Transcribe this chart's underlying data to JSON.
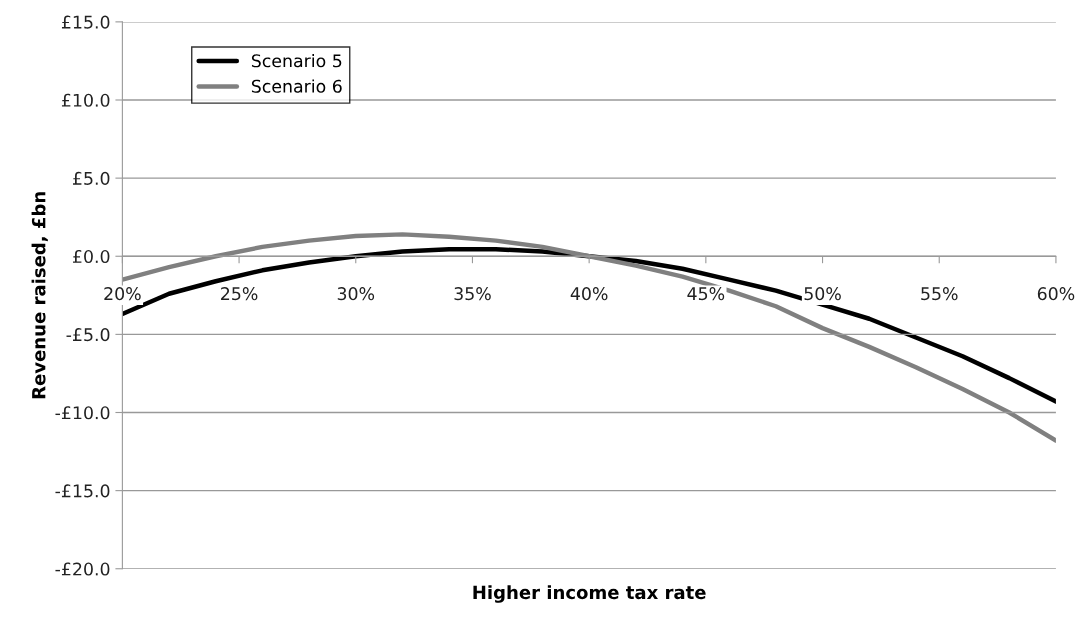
{
  "chart_data": {
    "type": "line",
    "xlabel": "Higher income tax rate",
    "ylabel": "Revenue raised, £bn",
    "x": [
      20,
      22,
      24,
      26,
      28,
      30,
      32,
      34,
      36,
      38,
      40,
      42,
      44,
      46,
      48,
      50,
      52,
      54,
      56,
      58,
      60
    ],
    "series": [
      {
        "name": "Scenario 5",
        "color": "#000000",
        "values": [
          -3.7,
          -2.4,
          -1.6,
          -0.9,
          -0.4,
          0.0,
          0.3,
          0.45,
          0.45,
          0.3,
          0.0,
          -0.3,
          -0.8,
          -1.5,
          -2.2,
          -3.1,
          -4.0,
          -5.2,
          -6.4,
          -7.8,
          -9.3
        ]
      },
      {
        "name": "Scenario 6",
        "color": "#808080",
        "values": [
          -1.5,
          -0.7,
          0.0,
          0.6,
          1.0,
          1.3,
          1.4,
          1.25,
          1.0,
          0.6,
          0.0,
          -0.6,
          -1.3,
          -2.2,
          -3.2,
          -4.6,
          -5.8,
          -7.1,
          -8.5,
          -10.0,
          -11.8
        ]
      }
    ],
    "xlim": [
      20,
      60
    ],
    "xticks": [
      {
        "value": 20,
        "label": "20%"
      },
      {
        "value": 25,
        "label": "25%"
      },
      {
        "value": 30,
        "label": "30%"
      },
      {
        "value": 35,
        "label": "35%"
      },
      {
        "value": 40,
        "label": "40%"
      },
      {
        "value": 45,
        "label": "45%"
      },
      {
        "value": 50,
        "label": "50%"
      },
      {
        "value": 55,
        "label": "55%"
      },
      {
        "value": 60,
        "label": "60%"
      }
    ],
    "ylim": [
      -20,
      15
    ],
    "yticks": [
      {
        "value": -20,
        "label": "-£20.0"
      },
      {
        "value": -15,
        "label": "-£15.0"
      },
      {
        "value": -10,
        "label": "-£10.0"
      },
      {
        "value": -5,
        "label": "-£5.0"
      },
      {
        "value": 0,
        "label": "£0.0"
      },
      {
        "value": 5,
        "label": "£5.0"
      },
      {
        "value": 10,
        "label": "£10.0"
      },
      {
        "value": 15,
        "label": "£15.0"
      }
    ],
    "grid": "y",
    "legend": "top left",
    "marker": "none",
    "line_style": "solid"
  }
}
